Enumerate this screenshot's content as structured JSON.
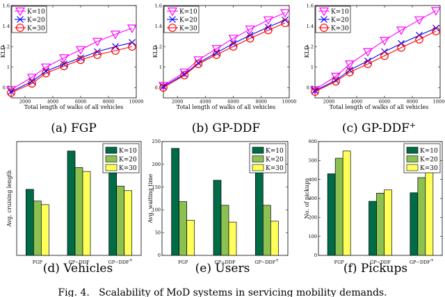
{
  "chart_data": [
    {
      "panel": "a",
      "type": "line",
      "caption": "(a) FGP",
      "xlabel": "Total length of walks of all vehicles",
      "ylabel": "KLD",
      "xlim": [
        1000,
        10000
      ],
      "ylim": [
        0.7,
        1.6
      ],
      "xticks": [
        "2000",
        "4000",
        "6000",
        "8000",
        "10000"
      ],
      "yticks": [
        "0.8",
        "1",
        "1.2",
        "1.4",
        "1.6"
      ],
      "x": [
        1000,
        2500,
        3500,
        4800,
        6000,
        7200,
        8500,
        9700
      ],
      "legend_position": "top-left",
      "series": [
        {
          "name": "K=10",
          "marker": "triangle-down",
          "color": "#ff00ff",
          "values": [
            0.78,
            0.9,
            1.0,
            1.09,
            1.17,
            1.25,
            1.32,
            1.38
          ]
        },
        {
          "name": "K=20",
          "marker": "x",
          "color": "#0000ff",
          "values": [
            0.76,
            0.86,
            0.96,
            1.03,
            1.09,
            1.15,
            1.2,
            1.24
          ]
        },
        {
          "name": "K=30",
          "marker": "circle",
          "color": "#ff0000",
          "values": [
            0.75,
            0.84,
            0.94,
            1.01,
            1.07,
            1.12,
            1.16,
            1.2
          ]
        }
      ]
    },
    {
      "panel": "b",
      "type": "line",
      "caption": "(b) GP-DDF",
      "xlabel": "Total length of walks of all vehicles",
      "ylabel": "KLD",
      "xlim": [
        1000,
        10000
      ],
      "ylim": [
        0.7,
        1.6
      ],
      "xticks": [
        "2000",
        "4000",
        "6000",
        "8000",
        "10000"
      ],
      "yticks": [
        "0.8",
        "1",
        "1.2",
        "1.4",
        "1.6"
      ],
      "x": [
        1000,
        2500,
        3500,
        4800,
        6000,
        7200,
        8500,
        9700
      ],
      "legend_position": "top-left",
      "series": [
        {
          "name": "K=10",
          "marker": "triangle-down",
          "color": "#ff00ff",
          "values": [
            0.82,
            0.95,
            1.07,
            1.18,
            1.28,
            1.37,
            1.46,
            1.53
          ]
        },
        {
          "name": "K=20",
          "marker": "x",
          "color": "#0000ff",
          "values": [
            0.81,
            0.93,
            1.04,
            1.14,
            1.23,
            1.31,
            1.39,
            1.46
          ]
        },
        {
          "name": "K=30",
          "marker": "circle",
          "color": "#ff0000",
          "values": [
            0.8,
            0.92,
            1.03,
            1.12,
            1.2,
            1.28,
            1.36,
            1.43
          ]
        }
      ]
    },
    {
      "panel": "c",
      "type": "line",
      "caption": "(c) GP-DDF+",
      "xlabel": "Total length of walks of all vehicles",
      "ylabel": "KLD",
      "xlim": [
        1000,
        10000
      ],
      "ylim": [
        0.7,
        1.6
      ],
      "xticks": [
        "2000",
        "4000",
        "6000",
        "8000",
        "10000"
      ],
      "yticks": [
        "0.8",
        "1",
        "1.2",
        "1.4",
        "1.6"
      ],
      "x": [
        1000,
        2500,
        3500,
        4800,
        6000,
        7200,
        8500,
        9700
      ],
      "legend_position": "top-left",
      "series": [
        {
          "name": "K=10",
          "marker": "triangle-down",
          "color": "#ff00ff",
          "values": [
            0.78,
            0.91,
            1.03,
            1.15,
            1.26,
            1.36,
            1.46,
            1.55
          ]
        },
        {
          "name": "K=20",
          "marker": "x",
          "color": "#0000ff",
          "values": [
            0.77,
            0.87,
            0.97,
            1.06,
            1.15,
            1.23,
            1.31,
            1.38
          ]
        },
        {
          "name": "K=30",
          "marker": "circle",
          "color": "#ff0000",
          "values": [
            0.76,
            0.86,
            0.95,
            1.03,
            1.11,
            1.19,
            1.27,
            1.35
          ]
        }
      ]
    },
    {
      "panel": "d",
      "type": "bar",
      "caption": "(d) Vehicles",
      "ylabel": "Avg. cruising length",
      "ylim": [
        0,
        35
      ],
      "yticks": [],
      "categories": [
        "FGP",
        "GP−DDF",
        "GP−DDF+"
      ],
      "legend_position": "top-right",
      "series": [
        {
          "name": "K=10",
          "color": "#006b47",
          "values": [
            20.3,
            32.1,
            27.4
          ]
        },
        {
          "name": "K=20",
          "color": "#8cc152",
          "values": [
            16.7,
            27.0,
            21.3
          ]
        },
        {
          "name": "K=30",
          "color": "#ffff5a",
          "values": [
            15.6,
            25.8,
            19.9
          ]
        }
      ]
    },
    {
      "panel": "e",
      "type": "bar",
      "caption": "(e) Users",
      "ylabel": "Avg. waiting time",
      "ylim": [
        0,
        250
      ],
      "yticks": [
        "0",
        "50",
        "100",
        "150",
        "200",
        "250"
      ],
      "categories": [
        "FGP",
        "GP−DDF",
        "GP−DDF+"
      ],
      "legend_position": "top-right",
      "series": [
        {
          "name": "K=10",
          "color": "#006b47",
          "values": [
            235,
            165,
            212
          ]
        },
        {
          "name": "K=20",
          "color": "#8cc152",
          "values": [
            118,
            110,
            110
          ]
        },
        {
          "name": "K=30",
          "color": "#ffff5a",
          "values": [
            77,
            73,
            75
          ]
        }
      ]
    },
    {
      "panel": "f",
      "type": "bar",
      "caption": "(f) Pickups",
      "ylabel": "No. of pickups",
      "ylim": [
        0,
        600
      ],
      "yticks": [
        "0",
        "100",
        "200",
        "300",
        "400",
        "500",
        "600"
      ],
      "categories": [
        "FGP",
        "GP−DDF",
        "GP−DDF+"
      ],
      "legend_position": "center-right",
      "series": [
        {
          "name": "K=10",
          "color": "#006b47",
          "values": [
            430,
            285,
            330
          ]
        },
        {
          "name": "K=20",
          "color": "#8cc152",
          "values": [
            512,
            328,
            410
          ]
        },
        {
          "name": "K=30",
          "color": "#ffff5a",
          "values": [
            550,
            345,
            440
          ]
        }
      ]
    }
  ],
  "figure_caption": "Fig. 4.   Scalability of MoD systems in servicing mobility demands."
}
